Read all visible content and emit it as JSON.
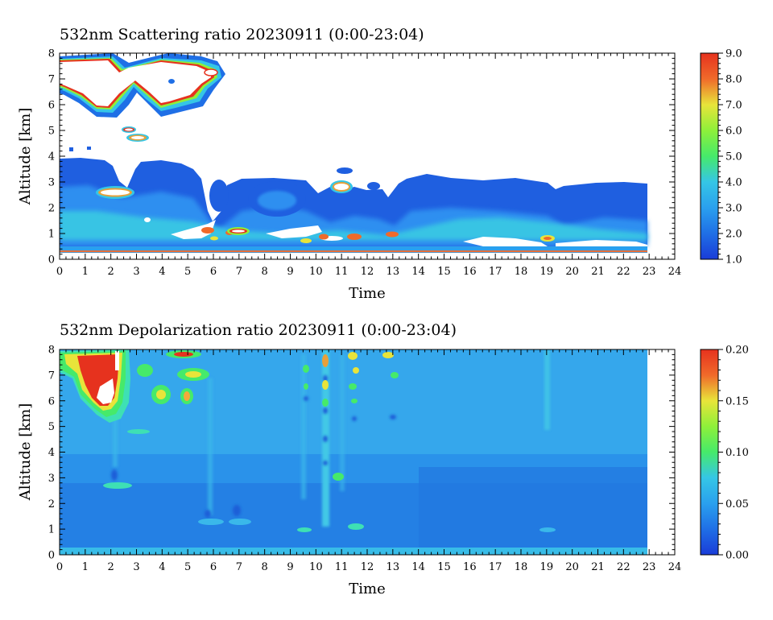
{
  "colormap": [
    "#1a3cd8",
    "#1f6fe6",
    "#2aa0ee",
    "#35c6e6",
    "#3ee0b4",
    "#46ea6a",
    "#8ef03a",
    "#e8e43a",
    "#f5a93a",
    "#f06a2a",
    "#e6321e"
  ],
  "chart_data": [
    {
      "type": "heatmap",
      "title": "532nm Scattering ratio  20230911 (0:00-23:04)",
      "xlabel": "Time",
      "ylabel": "Altitude [km]",
      "xlim": [
        0,
        24
      ],
      "ylim": [
        0,
        8
      ],
      "x_ticks": [
        "0",
        "1",
        "2",
        "3",
        "4",
        "5",
        "6",
        "7",
        "8",
        "9",
        "10",
        "11",
        "12",
        "13",
        "14",
        "15",
        "16",
        "17",
        "18",
        "19",
        "20",
        "21",
        "22",
        "23",
        "24"
      ],
      "y_ticks": [
        "0",
        "1",
        "2",
        "3",
        "4",
        "5",
        "6",
        "7",
        "8"
      ],
      "data_time_range": [
        0,
        23.07
      ],
      "colorbar": {
        "min": 1.0,
        "max": 9.0,
        "ticks": [
          "1.0",
          "2.0",
          "3.0",
          "4.0",
          "5.0",
          "6.0",
          "7.0",
          "8.0",
          "9.0"
        ]
      },
      "features": [
        {
          "kind": "layer",
          "t": [
            0,
            23
          ],
          "z": [
            0.2,
            3.8
          ],
          "value": 1.9
        },
        {
          "kind": "layer",
          "t": [
            0,
            23
          ],
          "z": [
            0.7,
            1.8
          ],
          "value": 2.6
        },
        {
          "kind": "cloud",
          "t": [
            0,
            6.5
          ],
          "z": [
            5.6,
            8.0
          ],
          "value": 9.0
        },
        {
          "kind": "cloud",
          "t": [
            2.1,
            2.8
          ],
          "z": [
            2.5,
            2.8
          ],
          "value": 9.0
        },
        {
          "kind": "cloud",
          "t": [
            2.9,
            3.4
          ],
          "z": [
            4.6,
            5.1
          ],
          "value": 8.0
        },
        {
          "kind": "cloud",
          "t": [
            5.5,
            7.5
          ],
          "z": [
            0.9,
            1.2
          ],
          "value": 8.5
        },
        {
          "kind": "cloud",
          "t": [
            9.5,
            13.5
          ],
          "z": [
            0.6,
            1.1
          ],
          "value": 8.0
        },
        {
          "kind": "cloud",
          "t": [
            10.8,
            11.6
          ],
          "z": [
            2.5,
            2.9
          ],
          "value": 9.0
        },
        {
          "kind": "cloud",
          "t": [
            18.8,
            19.3
          ],
          "z": [
            0.7,
            0.9
          ],
          "value": 7.5
        }
      ]
    },
    {
      "type": "heatmap",
      "title": "532nm Depolarization ratio  20230911 (0:00-23:04)",
      "xlabel": "Time",
      "ylabel": "Altitude [km]",
      "xlim": [
        0,
        24
      ],
      "ylim": [
        0,
        8
      ],
      "x_ticks": [
        "0",
        "1",
        "2",
        "3",
        "4",
        "5",
        "6",
        "7",
        "8",
        "9",
        "10",
        "11",
        "12",
        "13",
        "14",
        "15",
        "16",
        "17",
        "18",
        "19",
        "20",
        "21",
        "22",
        "23",
        "24"
      ],
      "y_ticks": [
        "0",
        "1",
        "2",
        "3",
        "4",
        "5",
        "6",
        "7",
        "8"
      ],
      "data_time_range": [
        0,
        23.07
      ],
      "colorbar": {
        "min": 0.0,
        "max": 0.2,
        "ticks": [
          "0.00",
          "0.05",
          "0.10",
          "0.15",
          "0.20"
        ]
      },
      "background_value": 0.035,
      "features": [
        {
          "kind": "patch",
          "t": [
            0,
            2.5
          ],
          "z": [
            5.6,
            8.0
          ],
          "value": 0.18
        },
        {
          "kind": "patch",
          "t": [
            3.5,
            6.0
          ],
          "z": [
            5.8,
            8.0
          ],
          "value": 0.13
        },
        {
          "kind": "patch",
          "t": [
            9.3,
            13.3
          ],
          "z": [
            5.0,
            8.0
          ],
          "value": 0.09
        },
        {
          "kind": "streak",
          "t": [
            10.2,
            10.5
          ],
          "z": [
            1.0,
            8.0
          ],
          "value": 0.06
        },
        {
          "kind": "streak",
          "t": [
            18.9,
            19.2
          ],
          "z": [
            5.0,
            8.0
          ],
          "value": 0.055
        },
        {
          "kind": "patch",
          "t": [
            2.0,
            3.0
          ],
          "z": [
            2.6,
            2.8
          ],
          "value": 0.06
        },
        {
          "kind": "patch",
          "t": [
            5.5,
            7.5
          ],
          "z": [
            1.0,
            1.4
          ],
          "value": 0.055
        }
      ]
    }
  ]
}
